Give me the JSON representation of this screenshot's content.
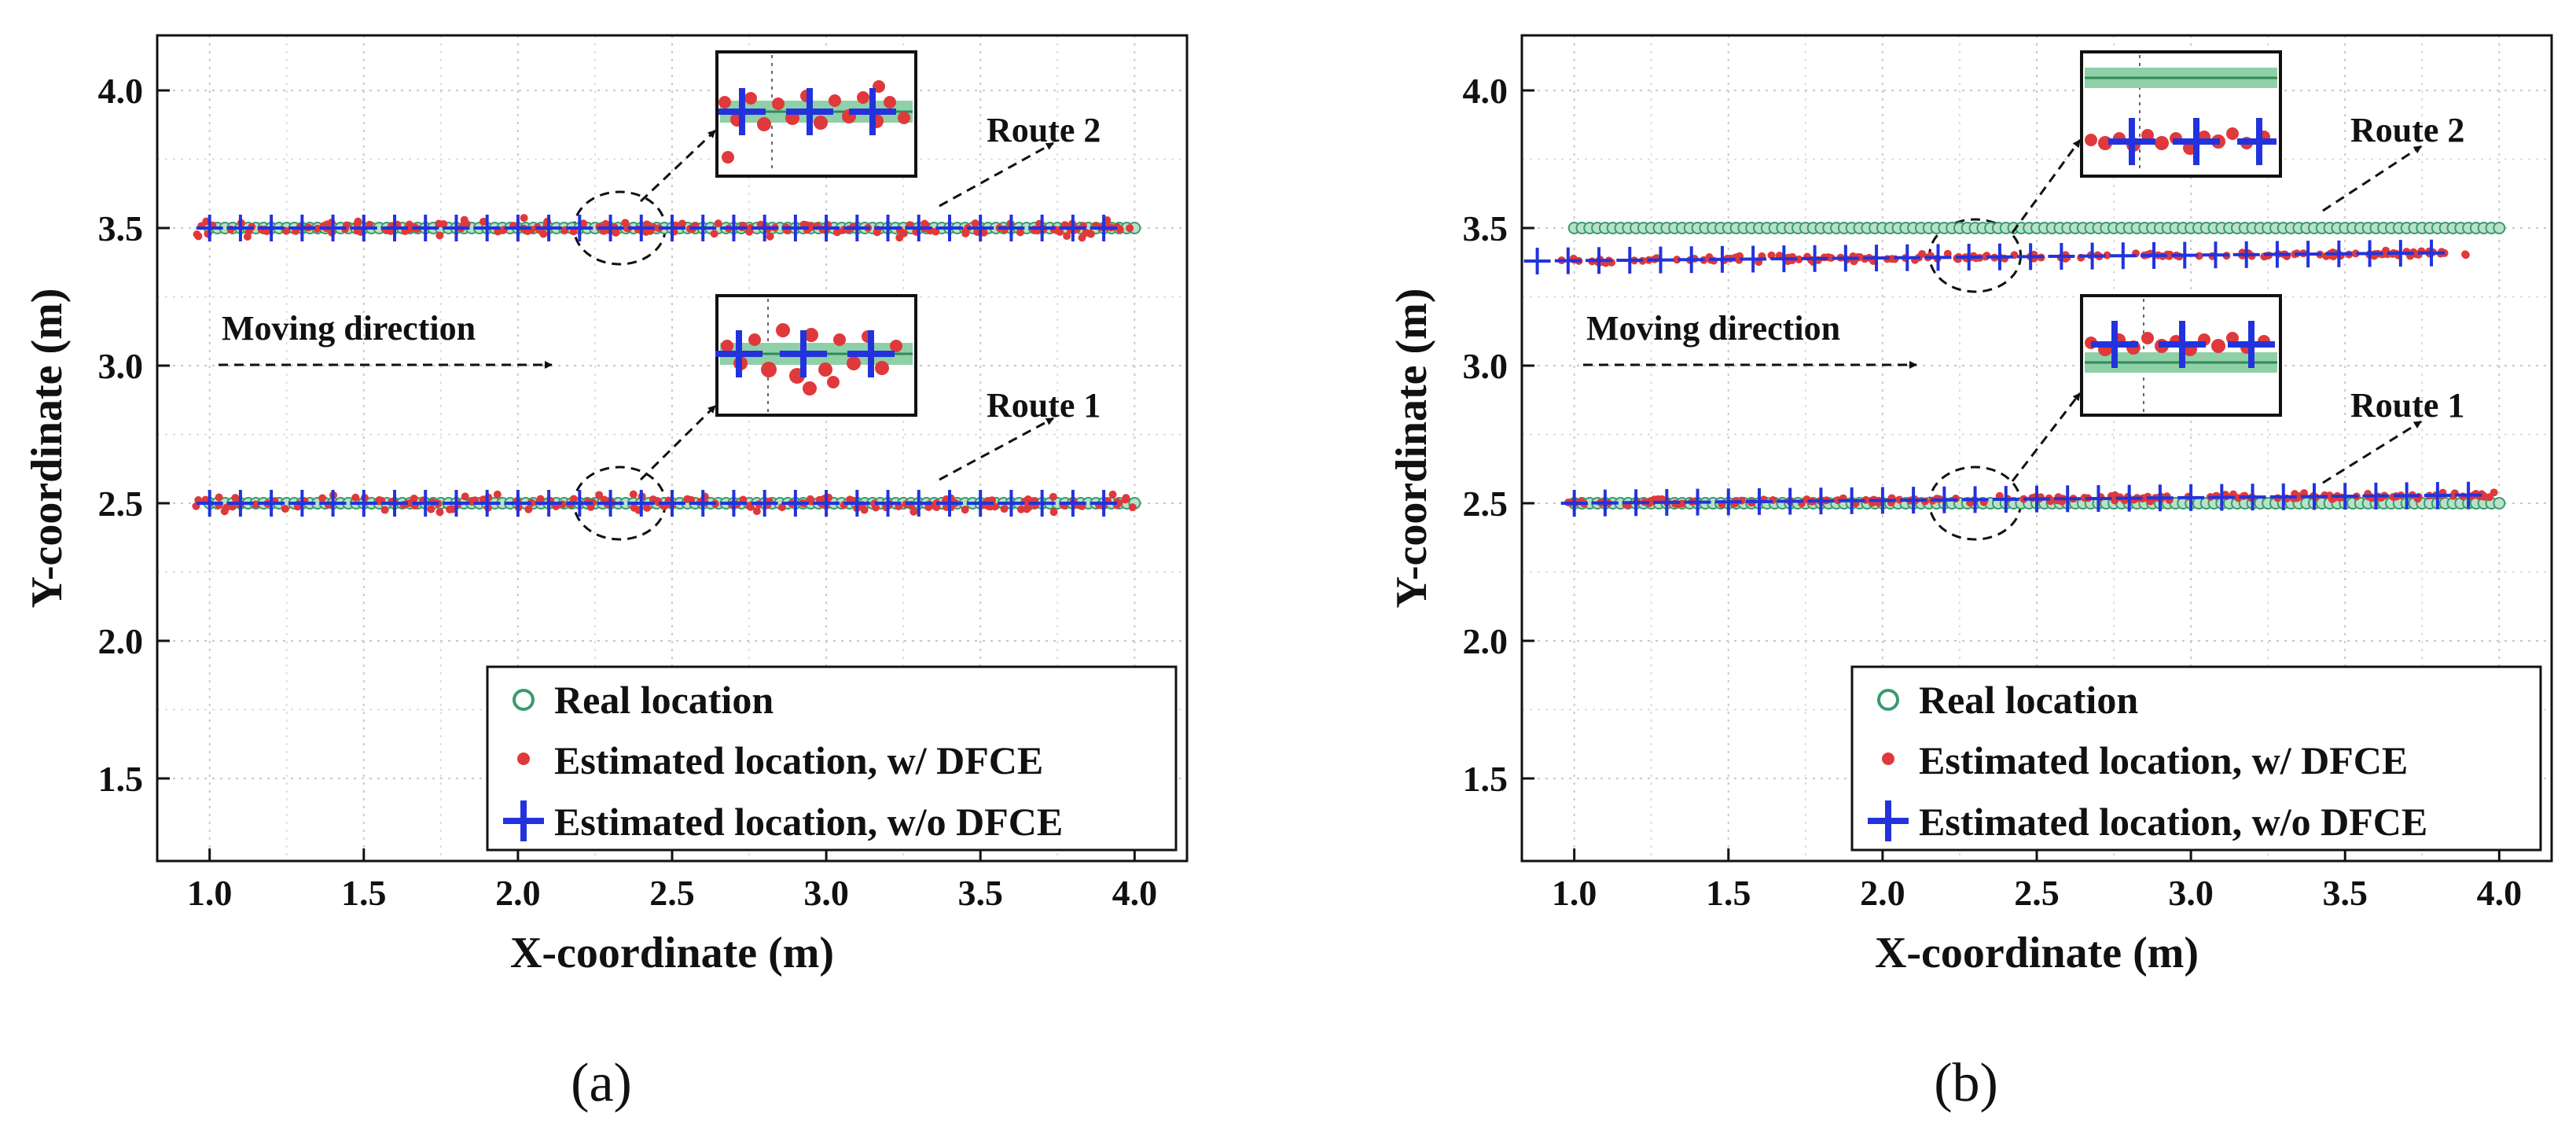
{
  "chart_data": [
    {
      "type": "scatter",
      "panel_label": "(a)",
      "xlabel": "X-coordinate (m)",
      "ylabel": "Y-coordinate (m)",
      "xlim": [
        0.83,
        4.17
      ],
      "ylim": [
        1.2,
        4.2
      ],
      "xticks": [
        "1.0",
        "1.5",
        "2.0",
        "2.5",
        "3.0",
        "3.5",
        "4.0"
      ],
      "yticks": [
        "1.5",
        "2.0",
        "2.5",
        "3.0",
        "3.5",
        "4.0"
      ],
      "grid": true,
      "legend_position": "lower-right",
      "annotations": {
        "moving_direction": "Moving direction",
        "route1": "Route 1",
        "route2": "Route 2"
      },
      "series": [
        {
          "name": "Real location",
          "color": "#3a9a6e",
          "marker": "circle",
          "routes": [
            {
              "y": 2.5,
              "x_start": 1.0,
              "x_end": 4.0,
              "step": 0.025
            },
            {
              "y": 3.5,
              "x_start": 1.0,
              "x_end": 4.0,
              "step": 0.025
            }
          ]
        },
        {
          "name": "Estimated location, w/   DFCE",
          "color": "#e0393b",
          "marker": "dot",
          "routes": [
            {
              "y_mean": 2.5,
              "spread": 0.05,
              "x_start": 0.95,
              "x_end": 4.0
            },
            {
              "y_mean": 3.5,
              "spread": 0.05,
              "x_start": 0.95,
              "x_end": 4.0
            }
          ]
        },
        {
          "name": "Estimated location, w/o DFCE",
          "color": "#2233dd",
          "marker": "plus",
          "routes": [
            {
              "y_start": 2.5,
              "y_end": 2.5,
              "x_start": 1.0,
              "x_end": 3.95,
              "step": 0.1
            },
            {
              "y_start": 3.5,
              "y_end": 3.5,
              "x_start": 1.0,
              "x_end": 3.95,
              "step": 0.1
            }
          ]
        }
      ]
    },
    {
      "type": "scatter",
      "panel_label": "(b)",
      "xlabel": "X-coordinate (m)",
      "ylabel": "Y-coordinate (m)",
      "xlim": [
        0.83,
        4.17
      ],
      "ylim": [
        1.2,
        4.2
      ],
      "xticks": [
        "1.0",
        "1.5",
        "2.0",
        "2.5",
        "3.0",
        "3.5",
        "4.0"
      ],
      "yticks": [
        "1.5",
        "2.0",
        "2.5",
        "3.0",
        "3.5",
        "4.0"
      ],
      "grid": true,
      "legend_position": "lower-right",
      "annotations": {
        "moving_direction": "Moving direction",
        "route1": "Route 1",
        "route2": "Route 2"
      },
      "series": [
        {
          "name": "Real location",
          "color": "#3a9a6e",
          "marker": "circle",
          "routes": [
            {
              "y": 2.5,
              "x_start": 1.0,
              "x_end": 4.0,
              "step": 0.025
            },
            {
              "y": 3.5,
              "x_start": 1.0,
              "x_end": 4.0,
              "step": 0.025
            }
          ]
        },
        {
          "name": "Estimated location, w/   DFCE",
          "color": "#e0393b",
          "marker": "dot",
          "routes": [
            {
              "y_start": 2.5,
              "y_end": 2.53,
              "spread": 0.02,
              "x_start": 0.98,
              "x_end": 4.0
            },
            {
              "y_start": 3.38,
              "y_end": 3.41,
              "spread": 0.02,
              "x_start": 0.95,
              "x_end": 3.9
            }
          ]
        },
        {
          "name": "Estimated location, w/o DFCE",
          "color": "#2233dd",
          "marker": "plus",
          "routes": [
            {
              "y_start": 2.5,
              "y_end": 2.53,
              "x_start": 1.0,
              "x_end": 3.95,
              "step": 0.1
            },
            {
              "y_start": 3.38,
              "y_end": 3.41,
              "x_start": 0.88,
              "x_end": 3.85,
              "step": 0.1
            }
          ]
        }
      ]
    }
  ]
}
